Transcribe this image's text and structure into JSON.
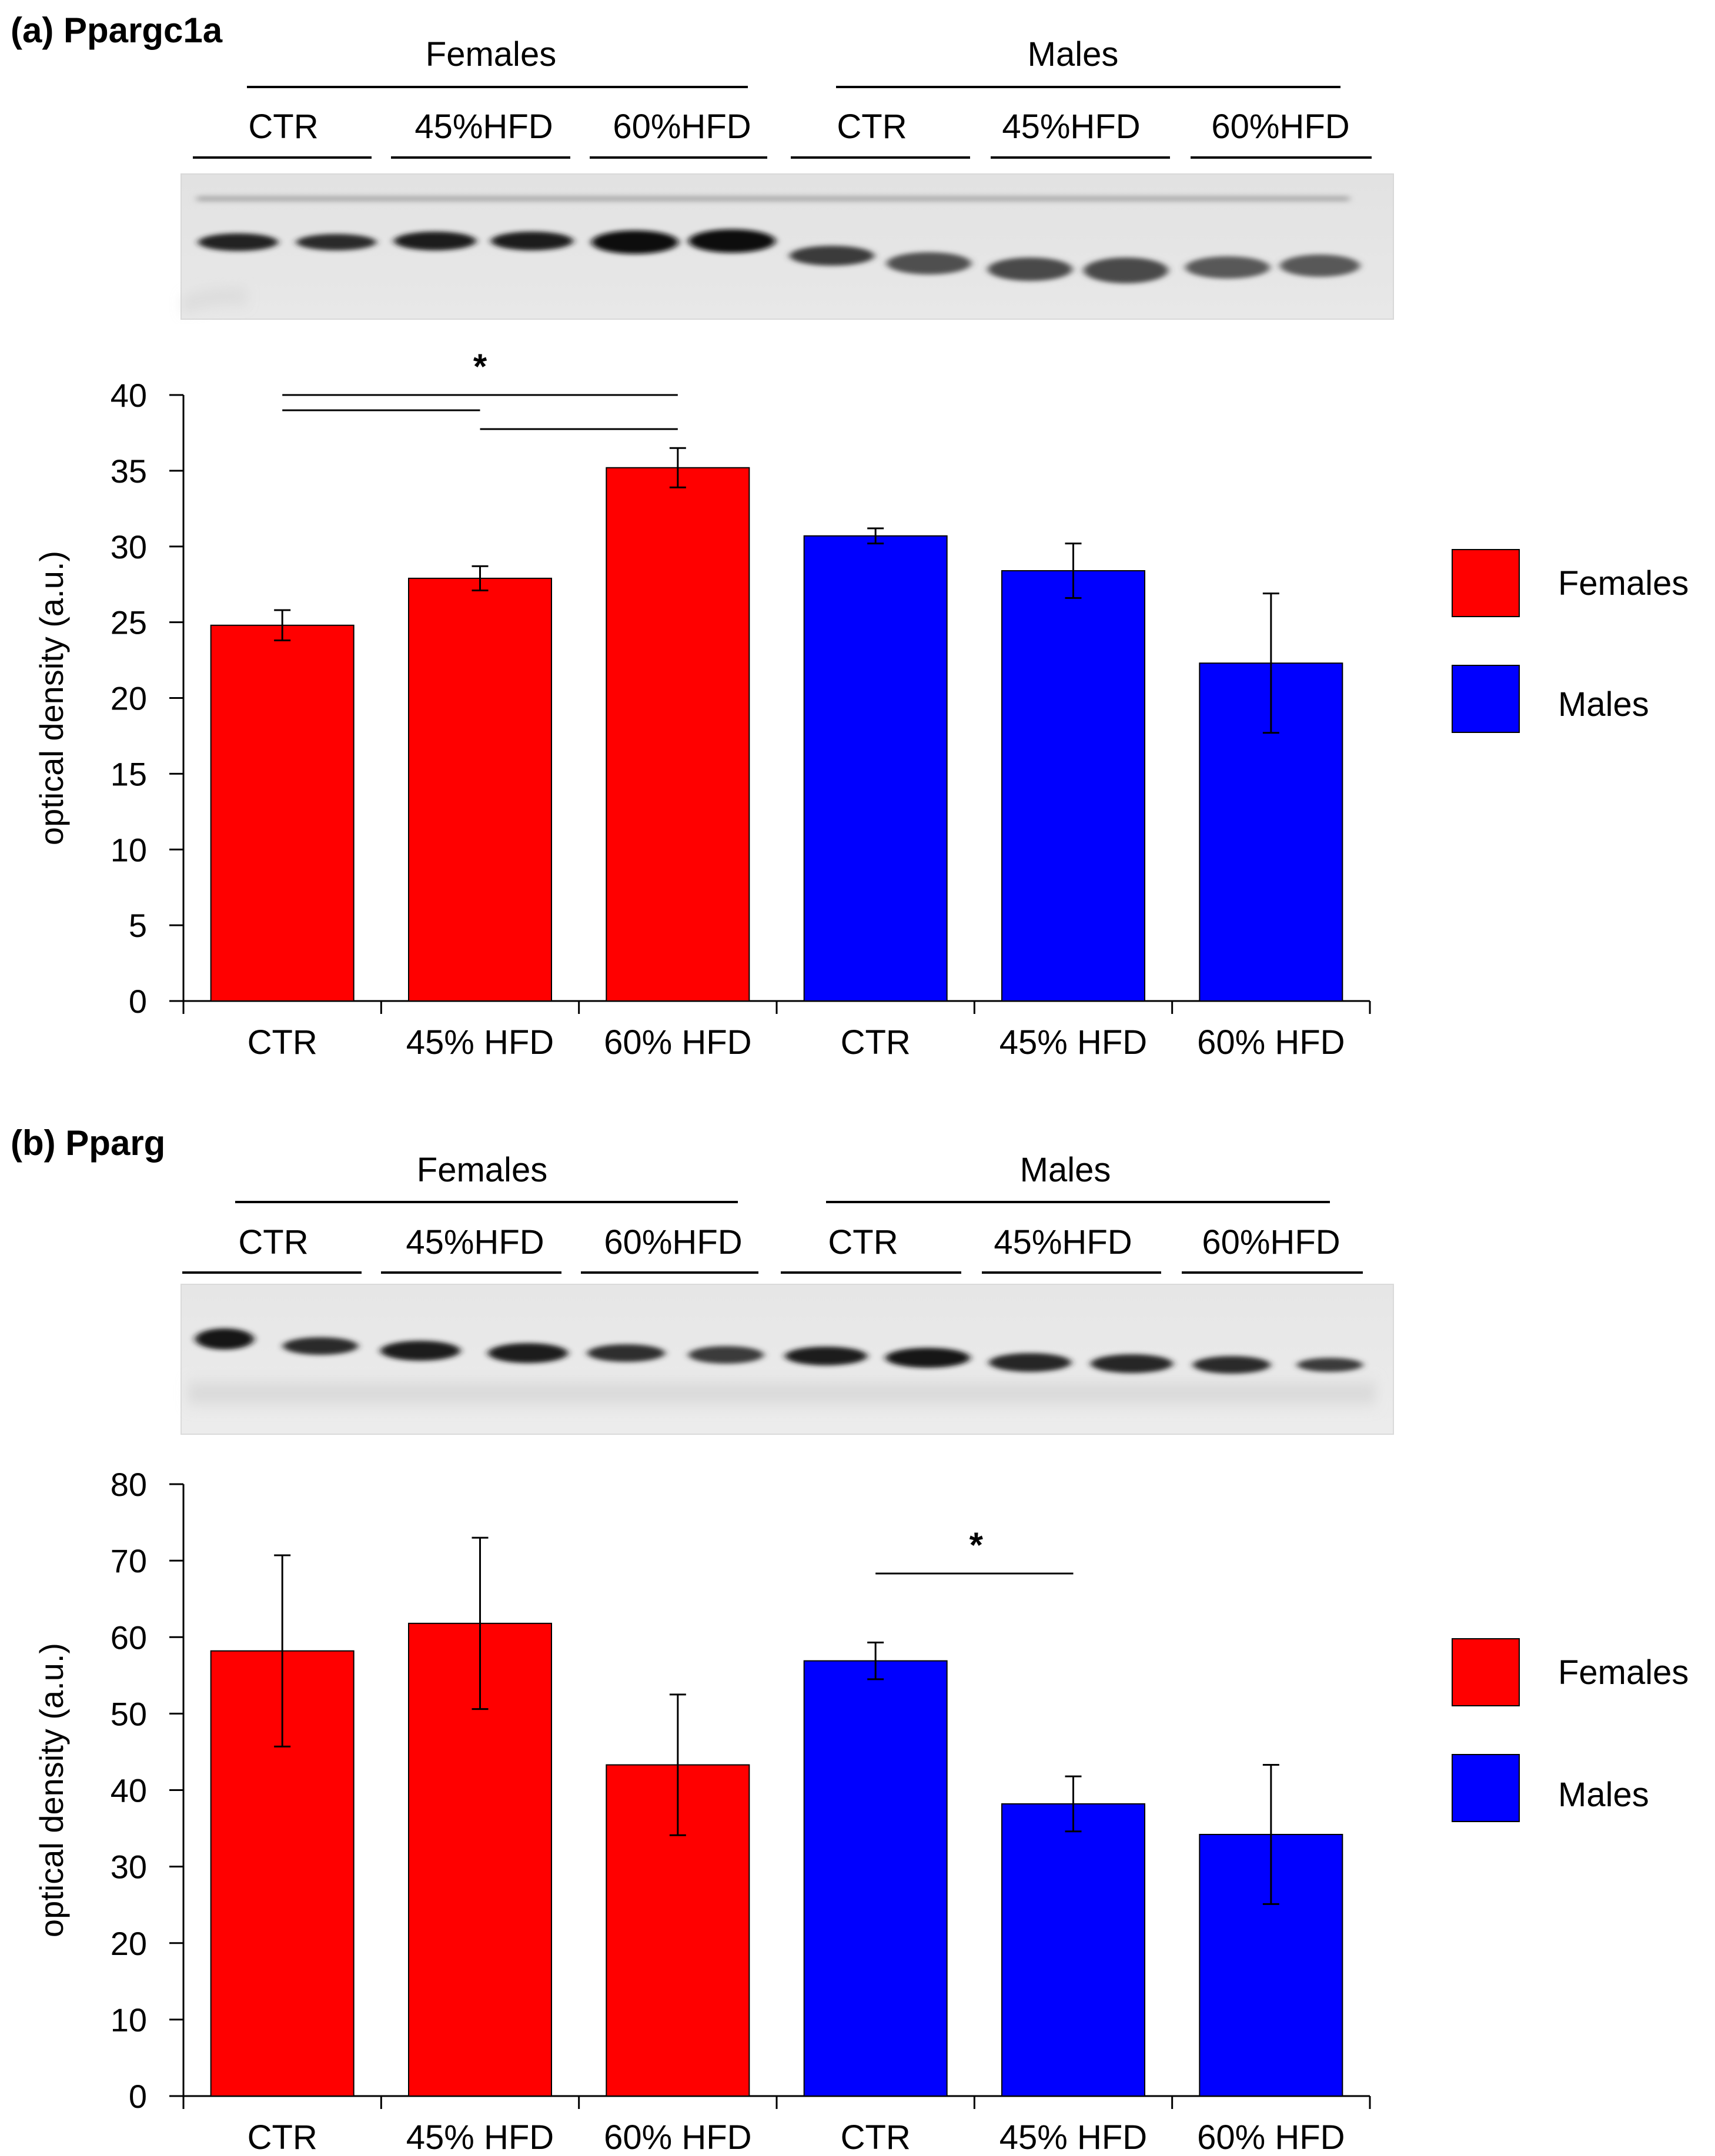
{
  "colors": {
    "females": "#ff0000",
    "males": "#0000ff",
    "axis": "#000000"
  },
  "chart_data": [
    {
      "type": "bar",
      "panel_label": "(a) Ppargc1a",
      "blot_header": {
        "groups": [
          "Females",
          "Males"
        ],
        "lanes": [
          "CTR",
          "45%HFD",
          "60%HFD",
          "CTR",
          "45%HFD",
          "60%HFD"
        ]
      },
      "categories": [
        "CTR",
        "45% HFD",
        "60% HFD",
        "CTR",
        "45% HFD",
        "60% HFD"
      ],
      "groups": [
        "Females",
        "Females",
        "Females",
        "Males",
        "Males",
        "Males"
      ],
      "values": [
        24.8,
        27.9,
        35.2,
        30.7,
        28.4,
        22.3
      ],
      "errors": [
        1.0,
        0.8,
        1.3,
        0.5,
        1.8,
        4.6
      ],
      "ylabel": "optical density (a.u.)",
      "ylim": [
        0,
        40
      ],
      "yticks": [
        0,
        5,
        10,
        15,
        20,
        25,
        30,
        35,
        40
      ],
      "legend": [
        "Females",
        "Males"
      ],
      "significance": [
        {
          "from": 0,
          "to": 2,
          "label": "*"
        },
        {
          "from": 0,
          "to": 1,
          "label": ""
        },
        {
          "from": 1,
          "to": 2,
          "label": ""
        }
      ]
    },
    {
      "type": "bar",
      "panel_label": "(b) Pparg",
      "blot_header": {
        "groups": [
          "Females",
          "Males"
        ],
        "lanes": [
          "CTR",
          "45%HFD",
          "60%HFD",
          "CTR",
          "45%HFD",
          "60%HFD"
        ]
      },
      "categories": [
        "CTR",
        "45% HFD",
        "60% HFD",
        "CTR",
        "45% HFD",
        "60% HFD"
      ],
      "groups": [
        "Females",
        "Females",
        "Females",
        "Males",
        "Males",
        "Males"
      ],
      "values": [
        58.2,
        61.8,
        43.3,
        56.9,
        38.2,
        34.2
      ],
      "errors": [
        12.5,
        11.2,
        9.2,
        2.4,
        3.6,
        9.1
      ],
      "ylabel": "optical density (a.u.)",
      "ylim": [
        0,
        80
      ],
      "yticks": [
        0,
        10,
        20,
        30,
        40,
        50,
        60,
        70,
        80
      ],
      "legend": [
        "Females",
        "Males"
      ],
      "significance": [
        {
          "from": 3,
          "to": 4,
          "label": "*"
        }
      ]
    }
  ]
}
